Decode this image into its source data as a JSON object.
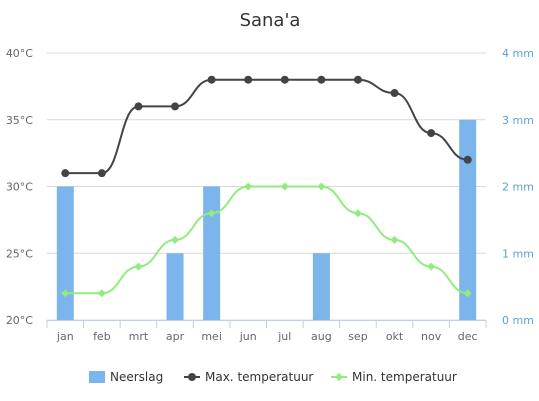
{
  "chart_data": {
    "type": "bar+line",
    "title": "Sana'a",
    "categories": [
      "jan",
      "feb",
      "mrt",
      "apr",
      "mei",
      "jun",
      "jul",
      "aug",
      "sep",
      "okt",
      "nov",
      "dec"
    ],
    "y_left": {
      "range": [
        20,
        40
      ],
      "ticks": [
        "20°C",
        "25°C",
        "30°C",
        "35°C",
        "40°C"
      ],
      "tick_values": [
        20,
        25,
        30,
        35,
        40
      ]
    },
    "y_right": {
      "range": [
        0,
        4
      ],
      "ticks": [
        "0 mm",
        "1 mm",
        "2 mm",
        "3 mm",
        "4 mm"
      ],
      "tick_values": [
        0,
        1,
        2,
        3,
        4
      ]
    },
    "grid": true,
    "legend_position": "bottom",
    "series": [
      {
        "name": "Neerslag",
        "kind": "bar",
        "axis": "right",
        "color": "#7cb5ec",
        "values": [
          2,
          0,
          0,
          1,
          2,
          0,
          0,
          1,
          0,
          0,
          0,
          3
        ]
      },
      {
        "name": "Max. temperatuur",
        "kind": "line",
        "axis": "left",
        "color": "#434348",
        "values": [
          31,
          31,
          36,
          36,
          38,
          38,
          38,
          38,
          38,
          37,
          34,
          32
        ]
      },
      {
        "name": "Min. temperatuur",
        "kind": "line",
        "axis": "left",
        "color": "#90ed7d",
        "values": [
          22,
          22,
          24,
          26,
          28,
          30,
          30,
          30,
          28,
          26,
          24,
          22
        ]
      }
    ]
  }
}
